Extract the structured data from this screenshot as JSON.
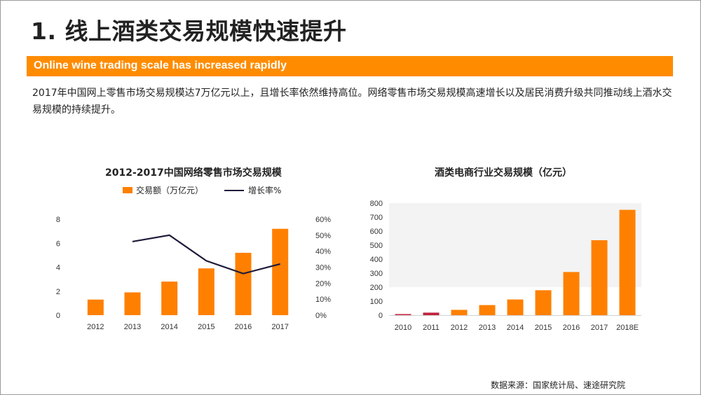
{
  "title": "1. 线上酒类交易规模快速提升",
  "banner": "Online wine trading scale has increased rapidly",
  "paragraph": "2017年中国网上零售市场交易规模达7万亿元以上，且增长率依然维持高位。网络零售市场交易规模高速增长以及居民消费升级共同推动线上酒水交易规模的持续提升。",
  "source": "数据来源：国家统计局、速途研究院",
  "colors": {
    "accent": "#ff8c00",
    "bar": "#ff8000",
    "line": "#1f1b3a",
    "bar_2011": "#c0223a"
  },
  "chart_data": [
    {
      "type": "bar",
      "title": "2012-2017中国网络零售市场交易规模",
      "categories": [
        "2012",
        "2013",
        "2014",
        "2015",
        "2016",
        "2017"
      ],
      "series": [
        {
          "name": "交易额（万亿元）",
          "type": "bar",
          "axis": "left",
          "values": [
            1.3,
            1.9,
            2.8,
            3.9,
            5.2,
            7.2
          ]
        },
        {
          "name": "增长率%",
          "type": "line",
          "axis": "right",
          "values": [
            null,
            46,
            50,
            34,
            26,
            32
          ]
        }
      ],
      "ylim": [
        0,
        8
      ],
      "yticks": [
        "0",
        "2",
        "4",
        "6",
        "8"
      ],
      "y2lim": [
        0,
        60
      ],
      "y2ticks": [
        "0%",
        "10%",
        "20%",
        "30%",
        "40%",
        "50%",
        "60%"
      ],
      "legend": "top"
    },
    {
      "type": "bar",
      "title": "酒类电商行业交易规模（亿元）",
      "categories": [
        "2010",
        "2011",
        "2012",
        "2013",
        "2014",
        "2015",
        "2016",
        "2017",
        "2018E"
      ],
      "values": [
        8,
        18,
        38,
        72,
        112,
        178,
        308,
        535,
        752
      ],
      "ylim": [
        0,
        800
      ],
      "yticks": [
        "0",
        "100",
        "200",
        "300",
        "400",
        "500",
        "600",
        "700",
        "800"
      ],
      "grid": false,
      "legend": "none"
    }
  ]
}
